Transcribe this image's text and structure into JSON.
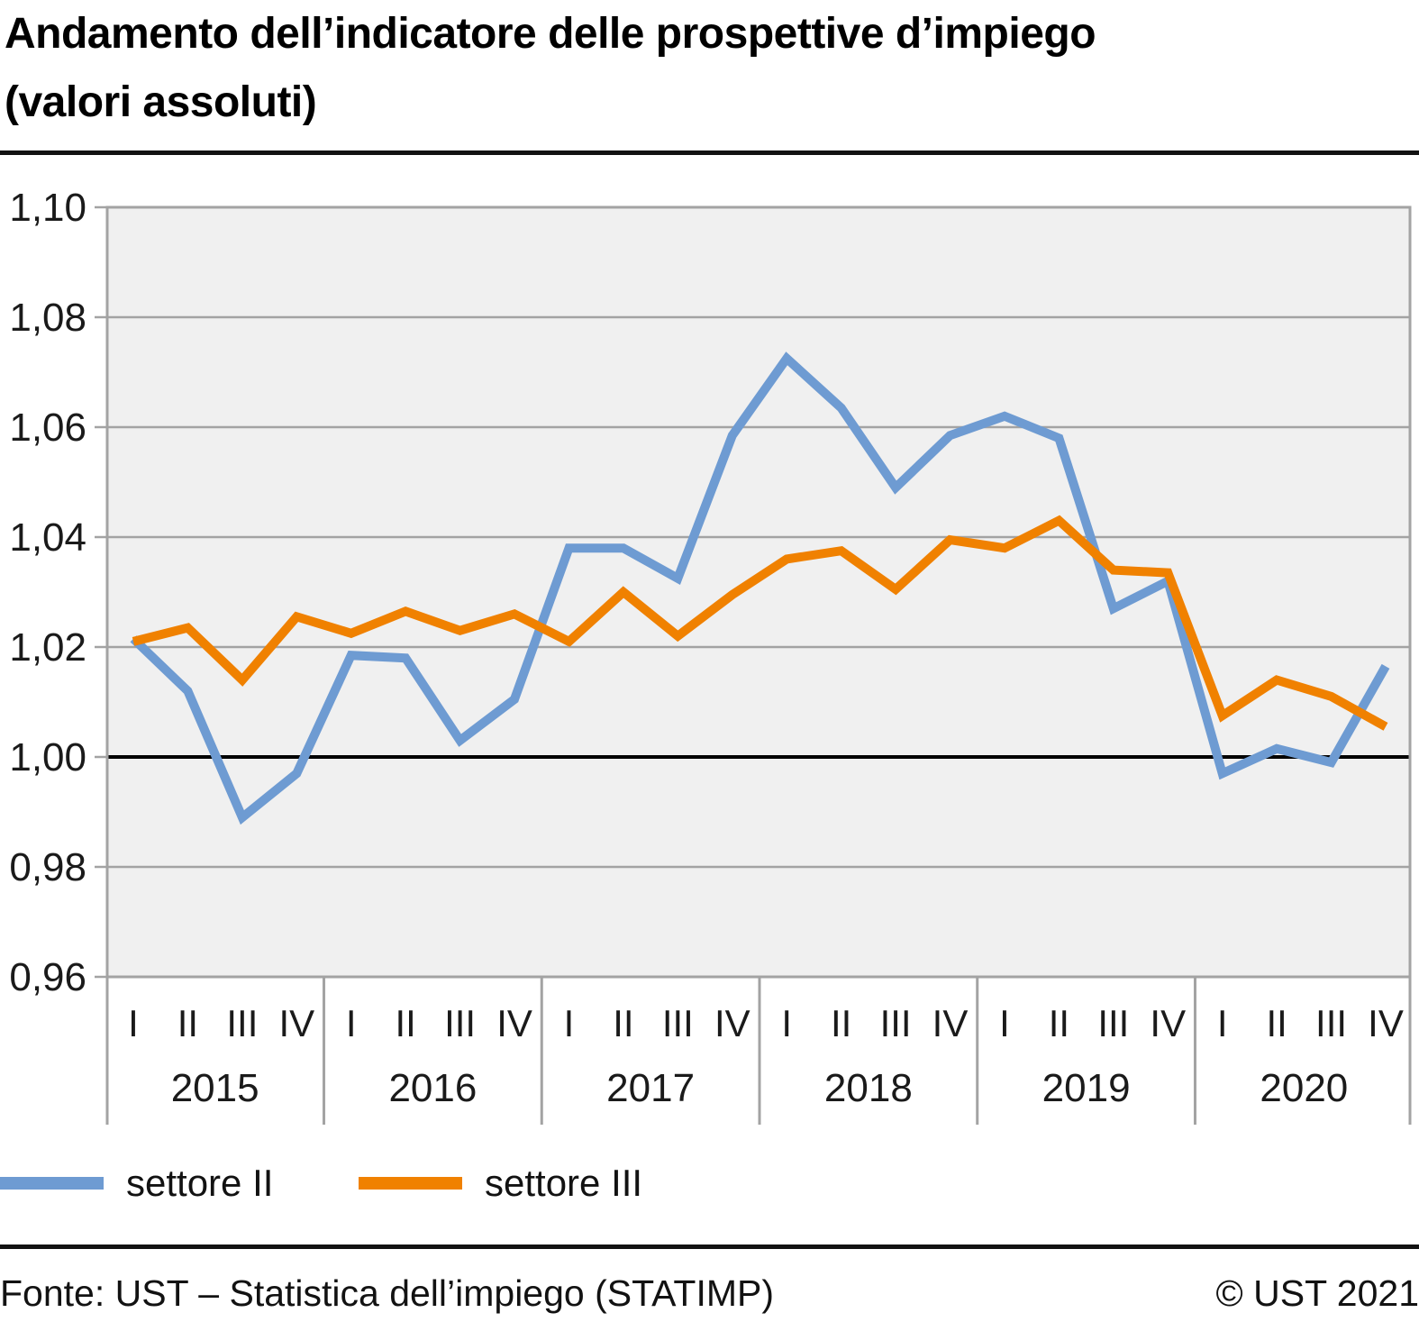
{
  "title": {
    "line1": "Andamento dell’indicatore delle prospettive d’impiego",
    "line2": "(valori assoluti)"
  },
  "chart_data": {
    "type": "line",
    "title": "Andamento dell’indicatore delle prospettive d’impiego (valori assoluti)",
    "ylim": [
      0.96,
      1.1
    ],
    "baseline_value": 1.0,
    "grid": true,
    "background": "#F0F0F0",
    "grid_color": "#A3A3A3",
    "label_color": "#1A1A1A",
    "y_ticks": [
      {
        "value": 1.1,
        "label": "1,10"
      },
      {
        "value": 1.08,
        "label": "1,08"
      },
      {
        "value": 1.06,
        "label": "1,06"
      },
      {
        "value": 1.04,
        "label": "1,04"
      },
      {
        "value": 1.02,
        "label": "1,02"
      },
      {
        "value": 1.0,
        "label": "1,00"
      },
      {
        "value": 0.98,
        "label": "0,98"
      },
      {
        "value": 0.96,
        "label": "0,96"
      }
    ],
    "years": [
      "2015",
      "2016",
      "2017",
      "2018",
      "2019",
      "2020"
    ],
    "quarter_labels": [
      "I",
      "II",
      "III",
      "IV"
    ],
    "legend_position": "bottom-left",
    "series": [
      {
        "name": "settore II",
        "color": "#6E9BD2",
        "values": [
          1.0215,
          1.012,
          0.989,
          0.997,
          1.0185,
          1.018,
          1.003,
          1.0105,
          1.038,
          1.038,
          1.0325,
          1.0585,
          1.0725,
          1.0635,
          1.049,
          1.0585,
          1.062,
          1.058,
          1.027,
          1.032,
          0.997,
          1.0015,
          0.999,
          1.0165
        ]
      },
      {
        "name": "settore III",
        "color": "#F08100",
        "values": [
          1.021,
          1.0235,
          1.014,
          1.0255,
          1.0225,
          1.0265,
          1.023,
          1.026,
          1.021,
          1.03,
          1.022,
          1.0295,
          1.036,
          1.0375,
          1.0305,
          1.0395,
          1.038,
          1.043,
          1.034,
          1.0335,
          1.0075,
          1.014,
          1.011,
          1.0055
        ]
      }
    ]
  },
  "footer": {
    "source": "Fonte: UST – Statistica dell’impiego (STATIMP)",
    "copyright": "© UST 2021"
  }
}
